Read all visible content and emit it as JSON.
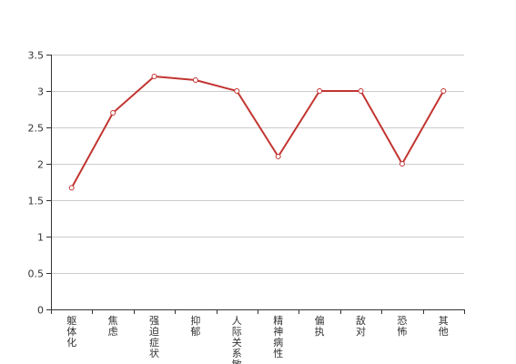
{
  "chart_data": {
    "type": "line",
    "categories": [
      "躯体化",
      "焦虑",
      "强迫症状",
      "抑郁",
      "人际关系敏",
      "精神病性",
      "偏执",
      "敌对",
      "恐怖",
      "其他"
    ],
    "series": [
      {
        "values": [
          1.67,
          2.7,
          3.2,
          3.15,
          3.0,
          2.1,
          3.0,
          3.0,
          2.0,
          3.0
        ]
      }
    ],
    "ylim": [
      0,
      3.5
    ],
    "yticks": [
      "0",
      "0.5",
      "1",
      "1.5",
      "2",
      "2.5",
      "3",
      "3.5"
    ],
    "grid": true,
    "colors": {
      "line": "#c23531",
      "point_fill": "#ffffff"
    }
  }
}
